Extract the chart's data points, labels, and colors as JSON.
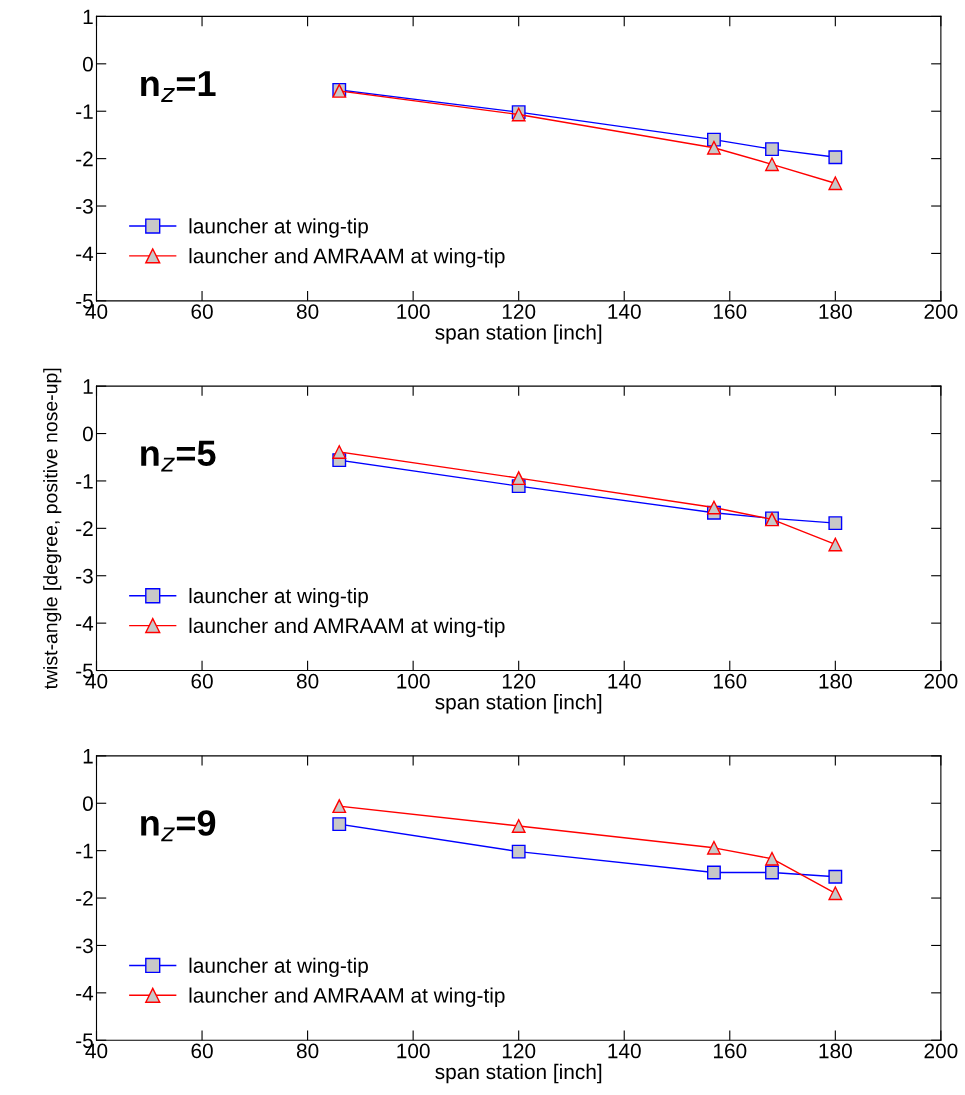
{
  "chart_data": [
    {
      "type": "line",
      "xlabel": "span station [inch]",
      "annotations": [
        "n$_{z}$=1"
      ],
      "x": [
        86,
        120,
        157,
        168,
        180
      ],
      "xlim": [
        40,
        200
      ],
      "xticks": [
        40,
        60,
        80,
        100,
        120,
        140,
        160,
        180,
        200
      ],
      "ylim": [
        -5,
        1
      ],
      "yticks": [
        -5,
        -4,
        -3,
        -2,
        -1,
        0,
        1
      ],
      "grid": false,
      "legend": "bottom left",
      "series": [
        {
          "name": "launcher at wing-tip",
          "color": "#0000ff",
          "marker": "square",
          "values": [
            -0.55,
            -1.02,
            -1.6,
            -1.8,
            -1.97
          ]
        },
        {
          "name": "launcher and AMRAAM at wing-tip",
          "color": "#ff0000",
          "marker": "triangle",
          "values": [
            -0.57,
            -1.07,
            -1.77,
            -2.12,
            -2.52
          ]
        }
      ]
    },
    {
      "type": "line",
      "xlabel": "span station [inch]",
      "ylabel": "twist-angle [degree, positive nose-up]",
      "annotations": [
        "n$_{z}$=5"
      ],
      "x": [
        86,
        120,
        157,
        168,
        180
      ],
      "xlim": [
        40,
        200
      ],
      "xticks": [
        40,
        60,
        80,
        100,
        120,
        140,
        160,
        180,
        200
      ],
      "ylim": [
        -5,
        1
      ],
      "yticks": [
        -5,
        -4,
        -3,
        -2,
        -1,
        0,
        1
      ],
      "grid": false,
      "legend": "bottom left",
      "series": [
        {
          "name": "launcher at wing-tip",
          "color": "#0000ff",
          "marker": "square",
          "values": [
            -0.56,
            -1.11,
            -1.67,
            -1.79,
            -1.89
          ]
        },
        {
          "name": "launcher and AMRAAM at wing-tip",
          "color": "#ff0000",
          "marker": "triangle",
          "values": [
            -0.39,
            -0.94,
            -1.56,
            -1.81,
            -2.34
          ]
        }
      ]
    },
    {
      "type": "line",
      "xlabel": "span station [inch]",
      "annotations": [
        "n$_{z}$=9"
      ],
      "x": [
        86,
        120,
        157,
        168,
        180
      ],
      "xlim": [
        40,
        200
      ],
      "xticks": [
        40,
        60,
        80,
        100,
        120,
        140,
        160,
        180,
        200
      ],
      "ylim": [
        -5,
        1
      ],
      "yticks": [
        -5,
        -4,
        -3,
        -2,
        -1,
        0,
        1
      ],
      "grid": false,
      "legend": "bottom left",
      "series": [
        {
          "name": "launcher at wing-tip",
          "color": "#0000ff",
          "marker": "square",
          "values": [
            -0.44,
            -1.02,
            -1.46,
            -1.46,
            -1.55
          ]
        },
        {
          "name": "launcher and AMRAAM at wing-tip",
          "color": "#ff0000",
          "marker": "triangle",
          "values": [
            -0.06,
            -0.48,
            -0.94,
            -1.17,
            -1.9
          ]
        }
      ]
    }
  ]
}
